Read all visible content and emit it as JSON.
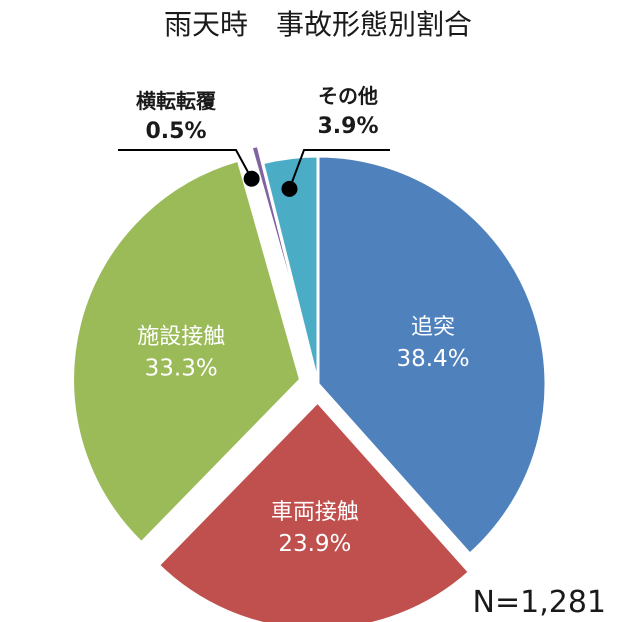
{
  "chart_data": {
    "type": "pie",
    "title": "雨天時　事故形態別割合",
    "note": "N=1,281",
    "slices": [
      {
        "label": "追突",
        "value": 38.4,
        "value_label": "38.4%",
        "color": "#4f81bd",
        "exploded": false,
        "outside_label": false
      },
      {
        "label": "車両接触",
        "value": 23.9,
        "value_label": "23.9%",
        "color": "#c0504d",
        "exploded": true,
        "outside_label": false
      },
      {
        "label": "施設接触",
        "value": 33.3,
        "value_label": "33.3%",
        "color": "#9bbb59",
        "exploded": true,
        "outside_label": false
      },
      {
        "label": "横転転覆",
        "value": 0.5,
        "value_label": "0.5%",
        "color": "#8064a2",
        "exploded": true,
        "outside_label": true
      },
      {
        "label": "その他",
        "value": 3.9,
        "value_label": "3.9%",
        "color": "#4bacc6",
        "exploded": false,
        "outside_label": true
      }
    ],
    "start_angle_deg": 0,
    "direction": "clockwise"
  }
}
